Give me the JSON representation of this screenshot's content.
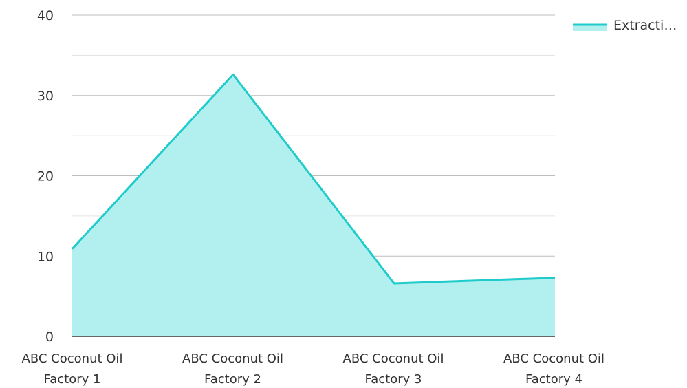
{
  "chart_data": {
    "type": "area",
    "categories": [
      [
        "ABC Coconut Oil",
        "Factory 1"
      ],
      [
        "ABC Coconut Oil",
        "Factory 2"
      ],
      [
        "ABC Coconut Oil",
        "Factory 3"
      ],
      [
        "ABC Coconut Oil",
        "Factory 4"
      ]
    ],
    "series": [
      {
        "name": "Extracti…",
        "values": [
          10.9,
          32.6,
          6.6,
          7.3
        ],
        "line_color": "#1fcbcb",
        "fill_color": "#b2efef"
      }
    ],
    "ylim": [
      0,
      40
    ],
    "yticks": [
      "0",
      "10",
      "20",
      "30",
      "40"
    ],
    "grid": true,
    "legend_position": "top-right",
    "title": "",
    "xlabel": "",
    "ylabel": ""
  }
}
